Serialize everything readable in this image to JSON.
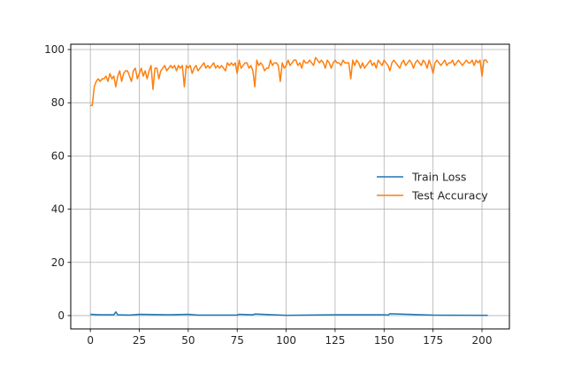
{
  "chart_data": {
    "type": "line",
    "title": "",
    "xlabel": "",
    "ylabel": "",
    "xlim": [
      -10,
      214
    ],
    "ylim": [
      -5,
      102
    ],
    "xticks": [
      0,
      25,
      50,
      75,
      100,
      125,
      150,
      175,
      200
    ],
    "yticks": [
      0,
      20,
      40,
      60,
      80,
      100
    ],
    "grid": true,
    "legend_position": "center-right",
    "series": [
      {
        "name": "Train Loss",
        "color": "#1f77b4",
        "x": [
          0,
          5,
          10,
          12,
          13,
          14,
          20,
          25,
          40,
          50,
          55,
          75,
          76,
          83,
          84,
          100,
          125,
          150,
          152,
          153,
          175,
          200,
          203
        ],
        "y": [
          0.5,
          0.3,
          0.3,
          0.3,
          1.4,
          0.3,
          0.2,
          0.5,
          0.3,
          0.5,
          0.2,
          0.2,
          0.5,
          0.3,
          0.6,
          0.1,
          0.3,
          0.3,
          0.2,
          0.7,
          0.2,
          0.1,
          0.1
        ]
      },
      {
        "name": "Test Accuracy",
        "color": "#ff7f0e",
        "x": [
          0,
          1,
          2,
          3,
          4,
          5,
          6,
          7,
          8,
          9,
          10,
          11,
          12,
          13,
          14,
          15,
          16,
          17,
          18,
          19,
          20,
          21,
          22,
          23,
          24,
          25,
          26,
          27,
          28,
          29,
          30,
          31,
          32,
          33,
          34,
          35,
          36,
          37,
          38,
          39,
          40,
          41,
          42,
          43,
          44,
          45,
          46,
          47,
          48,
          49,
          50,
          51,
          52,
          53,
          54,
          55,
          56,
          57,
          58,
          59,
          60,
          61,
          62,
          63,
          64,
          65,
          66,
          67,
          68,
          69,
          70,
          71,
          72,
          73,
          74,
          75,
          76,
          77,
          78,
          79,
          80,
          81,
          82,
          83,
          84,
          85,
          86,
          87,
          88,
          89,
          90,
          91,
          92,
          93,
          94,
          95,
          96,
          97,
          98,
          99,
          100,
          101,
          102,
          103,
          104,
          105,
          106,
          107,
          108,
          109,
          110,
          111,
          112,
          113,
          114,
          115,
          116,
          117,
          118,
          119,
          120,
          121,
          122,
          123,
          124,
          125,
          126,
          127,
          128,
          129,
          130,
          131,
          132,
          133,
          134,
          135,
          136,
          137,
          138,
          139,
          140,
          141,
          142,
          143,
          144,
          145,
          146,
          147,
          148,
          149,
          150,
          151,
          152,
          153,
          154,
          155,
          156,
          157,
          158,
          159,
          160,
          161,
          162,
          163,
          164,
          165,
          166,
          167,
          168,
          169,
          170,
          171,
          172,
          173,
          174,
          175,
          176,
          177,
          178,
          179,
          180,
          181,
          182,
          183,
          184,
          185,
          186,
          187,
          188,
          189,
          190,
          191,
          192,
          193,
          194,
          195,
          196,
          197,
          198,
          199,
          200,
          201,
          202,
          203
        ],
        "y": [
          79,
          79,
          86,
          88,
          89,
          88,
          89,
          89,
          90,
          88,
          91,
          89,
          90,
          86,
          90,
          92,
          88,
          91,
          92,
          92,
          90,
          88,
          92,
          93,
          89,
          91,
          93,
          90,
          92,
          89,
          92,
          94,
          85,
          93,
          93,
          89,
          92,
          93,
          94,
          92,
          93,
          94,
          93,
          94,
          92,
          94,
          93,
          94,
          86,
          94,
          93,
          94,
          91,
          93,
          94,
          92,
          93,
          94,
          95,
          93,
          94,
          93,
          94,
          95,
          93,
          94,
          93,
          94,
          93,
          92,
          95,
          94,
          95,
          94,
          95,
          91,
          96,
          93,
          94,
          95,
          95,
          93,
          94,
          92,
          86,
          96,
          94,
          95,
          94,
          92,
          93,
          93,
          96,
          94,
          95,
          95,
          94,
          88,
          95,
          93,
          94,
          96,
          94,
          95,
          96,
          96,
          94,
          95,
          93,
          96,
          95,
          95,
          96,
          95,
          94,
          97,
          96,
          95,
          96,
          95,
          93,
          96,
          95,
          93,
          95,
          96,
          95,
          95,
          94,
          96,
          95,
          95,
          95,
          89,
          96,
          94,
          96,
          95,
          93,
          95,
          93,
          94,
          95,
          96,
          94,
          95,
          93,
          96,
          95,
          94,
          96,
          95,
          94,
          92,
          95,
          96,
          95,
          94,
          93,
          95,
          96,
          94,
          95,
          96,
          95,
          93,
          95,
          96,
          95,
          94,
          96,
          95,
          93,
          96,
          94,
          91,
          95,
          96,
          95,
          94,
          95,
          96,
          94,
          95,
          95,
          96,
          94,
          95,
          96,
          95,
          94,
          95,
          96,
          95,
          95,
          96,
          94,
          96,
          95,
          96,
          90,
          96,
          96,
          95
        ]
      }
    ]
  }
}
